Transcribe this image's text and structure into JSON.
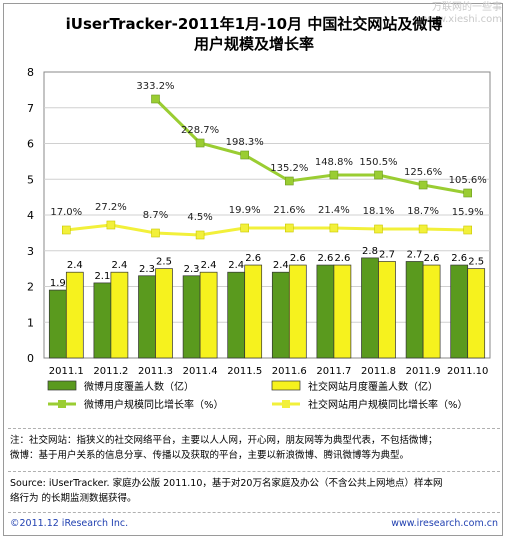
{
  "watermark": {
    "line1": "万联网的一些事",
    "line2": "www.xieshi.com"
  },
  "title": {
    "line1": "iUserTracker-2011年1月-10月 中国社交网站及微博",
    "line2": "用户规模及增长率"
  },
  "chart_data": {
    "type": "bar",
    "categories": [
      "2011.1",
      "2011.2",
      "2011.3",
      "2011.4",
      "2011.5",
      "2011.6",
      "2011.7",
      "2011.8",
      "2011.9",
      "2011.10"
    ],
    "ylim": [
      0,
      8
    ],
    "yticks": [
      "0",
      "1",
      "2",
      "3",
      "4",
      "5",
      "6",
      "7",
      "8"
    ],
    "grid": true,
    "series": [
      {
        "name": "微博月度覆盖人数（亿）",
        "kind": "bar",
        "color": "#5a9a1e",
        "values": [
          1.9,
          2.1,
          2.3,
          2.3,
          2.4,
          2.4,
          2.6,
          2.8,
          2.7,
          2.6
        ],
        "labels": [
          "1.9",
          "2.1",
          "2.3",
          "2.3",
          "2.4",
          "2.4",
          "2.6",
          "2.8",
          "2.7",
          "2.6"
        ]
      },
      {
        "name": "社交网站月度覆盖人数（亿）",
        "kind": "bar",
        "color": "#f6f21e",
        "values": [
          2.4,
          2.4,
          2.5,
          2.4,
          2.6,
          2.6,
          2.6,
          2.7,
          2.6,
          2.5
        ],
        "labels": [
          "2.4",
          "2.4",
          "2.5",
          "2.4",
          "2.6",
          "2.6",
          "2.6",
          "2.7",
          "2.6",
          "2.5"
        ]
      },
      {
        "name": "微博用户规模同比增长率（%）",
        "kind": "line",
        "color": "#9acd32",
        "start_index": 2,
        "labels": [
          "333.2%",
          "228.7%",
          "198.3%",
          "135.2%",
          "148.8%",
          "150.5%",
          "125.6%",
          "105.6%"
        ]
      },
      {
        "name": "社交网站用户规模同比增长率（%）",
        "kind": "line",
        "color": "#f2f03a",
        "labels": [
          "17.0%",
          "27.2%",
          "8.7%",
          "4.5%",
          "19.9%",
          "21.6%",
          "21.4%",
          "18.1%",
          "18.7%",
          "15.9%"
        ]
      }
    ]
  },
  "notes": {
    "line1": "注：社交网站：指狭义的社交网络平台，主要以人人网，开心网，朋友网等为典型代表，不包括微博；",
    "line2": "微博：基于用户关系的信息分享、传播以及获取的平台，主要以新浪微博、腾讯微博等为典型。"
  },
  "source": {
    "line1": "Source: iUserTracker. 家庭办公版 2011.10，基于对20万名家庭及办公（不含公共上网地点）样本网",
    "line2": "络行为 的长期监测数据获得。"
  },
  "footer": {
    "left": "©2011.12 iResearch Inc.",
    "right": "www.iresearch.com.cn"
  }
}
